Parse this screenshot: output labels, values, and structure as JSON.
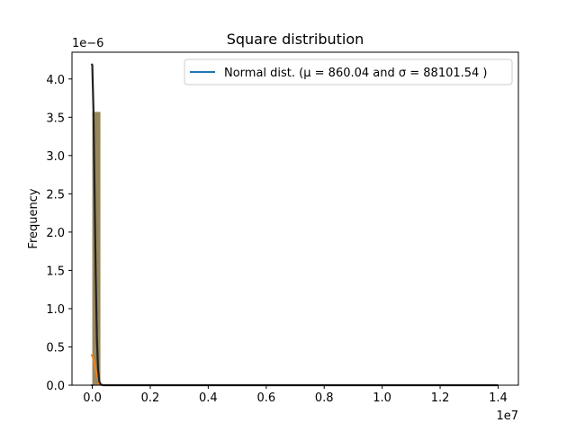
{
  "chart_data": {
    "type": "bar",
    "title": "Square distribution",
    "xlabel": "",
    "ylabel": "Frequency",
    "x_offset_text": "1e7",
    "y_offset_text": "1e−6",
    "xlim": [
      -700000,
      14700000
    ],
    "ylim": [
      0,
      4.35e-06
    ],
    "x_ticks": [
      0,
      2000000,
      4000000,
      6000000,
      8000000,
      10000000,
      12000000,
      14000000
    ],
    "x_tick_labels": [
      "0.0",
      "0.2",
      "0.4",
      "0.6",
      "0.8",
      "1.0",
      "1.2",
      "1.4"
    ],
    "y_ticks": [
      0,
      5e-07,
      1e-06,
      1.5e-06,
      2e-06,
      2.5e-06,
      3e-06,
      3.5e-06,
      4e-06
    ],
    "y_tick_labels": [
      "0.0",
      "0.5",
      "1.0",
      "1.5",
      "2.0",
      "2.5",
      "3.0",
      "3.5",
      "4.0"
    ],
    "legend": {
      "placement": "top-right",
      "entries": [
        {
          "label": "Normal dist. ($\\mu=$ 860.04 and $\\sigma=$ 88101.54 )",
          "display": "Normal dist. (μ = 860.04 and σ = 88101.54 )",
          "color": "#1f77b4"
        }
      ]
    },
    "histogram": {
      "bin_width": 280000,
      "bins": [
        {
          "x0": 0,
          "value": 3.57e-06
        },
        {
          "x0": 280000,
          "value": 0.0
        },
        {
          "x0": 560000,
          "value": 0.0
        },
        {
          "x0": 840000,
          "value": 0.0
        }
      ],
      "color": "#8c7a4a"
    },
    "series": [
      {
        "name": "Normal dist. (μ = 860.04 and σ = 88101.54 )",
        "color": "#1f77b4",
        "x": [
          -50000,
          0,
          50000
        ],
        "y": [
          0,
          0,
          0
        ]
      },
      {
        "color": "#ff7f0e",
        "x": [
          -40000,
          0,
          60000,
          120000,
          180000,
          240000
        ],
        "y": [
          4e-07,
          3.8e-07,
          3e-07,
          2e-07,
          1e-07,
          0.0
        ]
      },
      {
        "color": "#222222",
        "x": [
          -20000,
          0,
          40000,
          80000,
          120000,
          160000,
          200000,
          240000,
          300000,
          400000,
          1000000,
          5000000,
          14000000
        ],
        "y": [
          4.2e-06,
          4.18e-06,
          3.6e-06,
          2.5e-06,
          1.4e-06,
          6e-07,
          2e-07,
          5e-08,
          5e-09,
          0,
          0,
          0,
          0
        ]
      }
    ]
  }
}
